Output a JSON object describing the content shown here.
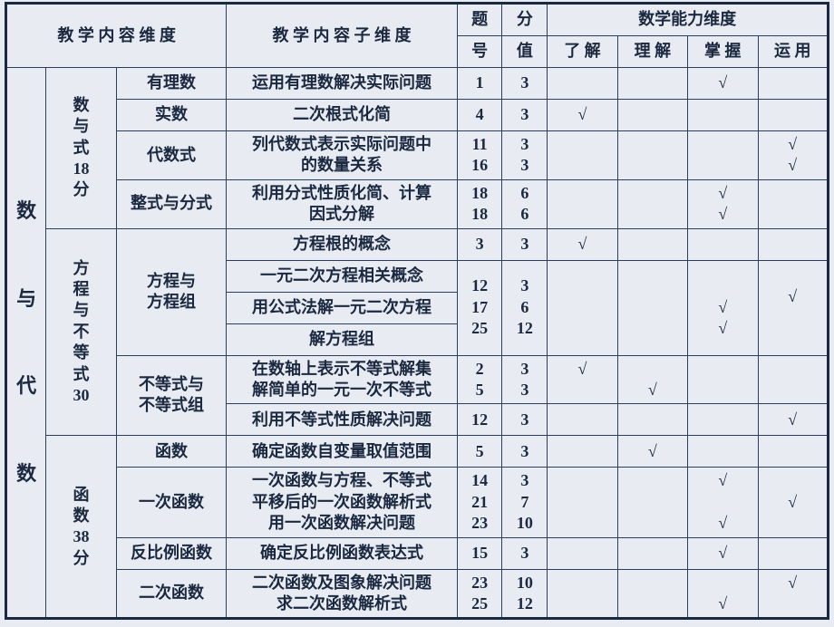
{
  "chk": "√",
  "head": {
    "c1": "教 学 内 容 维 度",
    "c2": "教 学 内 容 子 维 度",
    "c3a": "题",
    "c3b": "号",
    "c4a": "分",
    "c4b": "值",
    "c5": "数学能力维度",
    "a1": "了  解",
    "a2": "理  解",
    "a3": "掌  握",
    "a4": "运  用"
  },
  "main": "数<br><br>与<br><br>代<br><br>数",
  "g1": {
    "title": "数<br>与<br>式<br>18<br>分",
    "r1": {
      "sub": "有理数",
      "desc": "运用有理数解决实际问题",
      "num": "1",
      "val": "3",
      "m": "√"
    },
    "r2": {
      "sub": "实数",
      "desc": "二次根式化简",
      "num": "4",
      "val": "3",
      "u": "√"
    },
    "r3": {
      "sub": "代数式",
      "desc1": "列代数式表示实际问题中",
      "desc2": "的数量关系",
      "num1": "11",
      "num2": "16",
      "val1": "3",
      "val2": "3",
      "a1": "√",
      "a2": "√"
    },
    "r4": {
      "sub": "整式与分式",
      "desc1": "利用分式性质化简、计算",
      "desc2": "因式分解",
      "num1": "18",
      "num2": "18",
      "val1": "6",
      "val2": "6",
      "m1": "√",
      "m2": "√"
    }
  },
  "g2": {
    "title": "方<br>程<br>与<br>不<br>等<br>式<br>30",
    "r1": {
      "sub": "方程与<br>方程组",
      "d1": "方程根的概念",
      "n1": "3",
      "v1": "3",
      "u1": "√",
      "d2": "一元二次方程相关概念",
      "n2": "12",
      "v2": "3",
      "a2": "√",
      "d3": "用公式法解一元二次方程",
      "n3": "17",
      "v3": "6",
      "m3": "√",
      "d4": "解方程组",
      "n4": "25",
      "v4": "12",
      "m4": "√"
    },
    "r2": {
      "sub": "不等式与<br>不等式组",
      "d1": "在数轴上表示不等式解集",
      "n1": "2",
      "v1": "3",
      "u1": "√",
      "d2": "解简单的一元一次不等式",
      "n2": "5",
      "v2": "3",
      "c2": "√",
      "d3": "利用不等式性质解决问题",
      "n3": "12",
      "v3": "3",
      "a3": "√"
    }
  },
  "g3": {
    "title": "函<br>数<br>38<br>分",
    "r1": {
      "sub": "函数",
      "desc": "确定函数自变量取值范围",
      "num": "5",
      "val": "3",
      "c": "√"
    },
    "r2": {
      "sub": "一次函数",
      "d1": "一次函数与方程、不等式",
      "n1": "14",
      "v1": "3",
      "m1": "√",
      "d2": "平移后的一次函数解析式",
      "n2": "21",
      "v2": "7",
      "a2": "√",
      "d3": "用一次函数解决问题",
      "n3": "23",
      "v3": "10",
      "m3": "√"
    },
    "r3": {
      "sub": "反比例函数",
      "desc": "确定反比例函数表达式",
      "num": "15",
      "val": "3",
      "m": "√"
    },
    "r4": {
      "sub": "二次函数",
      "d1": "二次函数及图象解决问题",
      "n1": "23",
      "v1": "10",
      "a1": "√",
      "d2": "求二次函数解析式",
      "n2": "25",
      "v2": "12",
      "m2": "√"
    }
  }
}
